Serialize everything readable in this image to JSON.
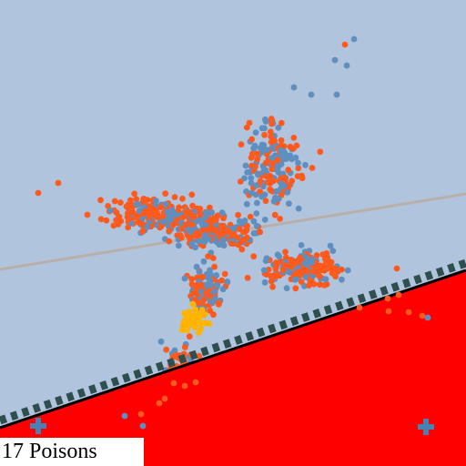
{
  "status": {
    "count": "17",
    "label": "Poisons"
  },
  "colors": {
    "sky": "#b0c4de",
    "ground": "#ff0000",
    "wall_edge": "#000000",
    "wall_dash": "#2f4f4f",
    "aim_line": "#b8b0a8",
    "agent_blue": "#5f8fbf",
    "agent_orange": "#ff5a1e",
    "agent_gold": "#ffb400",
    "medic_cross": "#4682b4"
  },
  "icons": {
    "pickup": "plus-cross-icon"
  }
}
